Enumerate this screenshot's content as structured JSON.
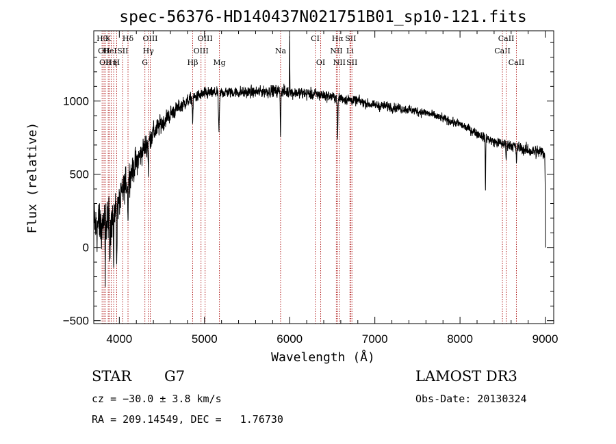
{
  "chart_data": {
    "type": "line",
    "title": "spec-56376-HD140437N021751B01_sp10-121.fits",
    "xlabel": "Wavelength (Å)",
    "ylabel": "Flux (relative)",
    "xlim": [
      3700,
      9100
    ],
    "ylim": [
      -520,
      1480
    ],
    "xticks": [
      4000,
      5000,
      6000,
      7000,
      8000,
      9000
    ],
    "yticks": [
      -500,
      0,
      500,
      1000
    ],
    "xtick_labels": [
      "4000",
      "5000",
      "6000",
      "7000",
      "8000",
      "9000"
    ],
    "ytick_labels": [
      "−500",
      "0",
      "500",
      "1000"
    ],
    "grid": false,
    "series": [
      {
        "name": "flux",
        "color": "#000000",
        "continuum": [
          [
            3700,
            150
          ],
          [
            3800,
            150
          ],
          [
            3900,
            200
          ],
          [
            4000,
            300
          ],
          [
            4100,
            470
          ],
          [
            4200,
            580
          ],
          [
            4300,
            690
          ],
          [
            4400,
            780
          ],
          [
            4500,
            850
          ],
          [
            4600,
            910
          ],
          [
            4700,
            960
          ],
          [
            4800,
            1000
          ],
          [
            4900,
            1030
          ],
          [
            5000,
            1050
          ],
          [
            5200,
            1060
          ],
          [
            5400,
            1060
          ],
          [
            5600,
            1060
          ],
          [
            5800,
            1070
          ],
          [
            6000,
            1060
          ],
          [
            6200,
            1050
          ],
          [
            6400,
            1040
          ],
          [
            6600,
            1020
          ],
          [
            6800,
            1000
          ],
          [
            7000,
            970
          ],
          [
            7200,
            960
          ],
          [
            7400,
            940
          ],
          [
            7600,
            920
          ],
          [
            7800,
            880
          ],
          [
            8000,
            840
          ],
          [
            8200,
            780
          ],
          [
            8400,
            720
          ],
          [
            8600,
            700
          ],
          [
            8800,
            660
          ],
          [
            8990,
            650
          ]
        ],
        "noise": [
          [
            3700,
            200
          ],
          [
            4000,
            130
          ],
          [
            4300,
            90
          ],
          [
            4700,
            50
          ],
          [
            5200,
            40
          ],
          [
            6000,
            45
          ],
          [
            7000,
            35
          ],
          [
            8000,
            30
          ],
          [
            8600,
            40
          ],
          [
            9000,
            50
          ]
        ],
        "features": [
          [
            3835,
            3,
            -380
          ],
          [
            3889,
            3,
            -350
          ],
          [
            3934,
            3,
            -400
          ],
          [
            3969,
            3,
            -350
          ],
          [
            4102,
            4,
            -220
          ],
          [
            4341,
            4,
            -200
          ],
          [
            4861,
            4,
            -150
          ],
          [
            5170,
            6,
            -250
          ],
          [
            5893,
            3,
            -300
          ],
          [
            6000,
            2,
            430
          ],
          [
            6563,
            4,
            -280
          ],
          [
            8298,
            3,
            -340
          ],
          [
            8542,
            4,
            -100
          ],
          [
            8662,
            4,
            -100
          ]
        ],
        "end_drop": [
          [
            8995,
            630
          ],
          [
            9000,
            400
          ],
          [
            9003,
            0
          ]
        ]
      }
    ],
    "line_markers": [
      {
        "wave": 3798,
        "label": "Hθ",
        "row": 0
      },
      {
        "wave": 3820,
        "label": "OII",
        "row": 1
      },
      {
        "wave": 3835,
        "label": "OII",
        "row": 2
      },
      {
        "wave": 3870,
        "label": "K",
        "row": 0
      },
      {
        "wave": 3889,
        "label": "HeI",
        "row": 1
      },
      {
        "wave": 3905,
        "label": "Hη",
        "row": 2
      },
      {
        "wave": 3934,
        "label": "",
        "row": 0
      },
      {
        "wave": 3969,
        "label": "H",
        "row": 2
      },
      {
        "wave": 4040,
        "label": "SII",
        "row": 1
      },
      {
        "wave": 4102,
        "label": "Hδ",
        "row": 0
      },
      {
        "wave": 4300,
        "label": "G",
        "row": 2
      },
      {
        "wave": 4341,
        "label": "Hγ",
        "row": 1
      },
      {
        "wave": 4363,
        "label": "OIII",
        "row": 0
      },
      {
        "wave": 4861,
        "label": "Hβ",
        "row": 2
      },
      {
        "wave": 4959,
        "label": "OIII",
        "row": 1
      },
      {
        "wave": 5007,
        "label": "OIII",
        "row": 0
      },
      {
        "wave": 5175,
        "label": "Mg",
        "row": 2
      },
      {
        "wave": 5893,
        "label": "Na",
        "row": 1
      },
      {
        "wave": 6300,
        "label": "CI",
        "row": 0
      },
      {
        "wave": 6364,
        "label": "OI",
        "row": 2
      },
      {
        "wave": 6548,
        "label": "NII",
        "row": 1
      },
      {
        "wave": 6563,
        "label": "Hα",
        "row": 0
      },
      {
        "wave": 6583,
        "label": "NII",
        "row": 2
      },
      {
        "wave": 6708,
        "label": "Li",
        "row": 1
      },
      {
        "wave": 6716,
        "label": "SII",
        "row": 0
      },
      {
        "wave": 6731,
        "label": "SII",
        "row": 2
      },
      {
        "wave": 8498,
        "label": "CaII",
        "row": 1
      },
      {
        "wave": 8542,
        "label": "CaII",
        "row": 0
      },
      {
        "wave": 8662,
        "label": "CaII",
        "row": 2
      }
    ],
    "marker_color": "#b22222"
  },
  "info": {
    "object_class": "STAR",
    "subclass": "G7",
    "survey": "LAMOST DR3",
    "velocity": "cz = −30.0 ± 3.8 km/s",
    "obs_date": "Obs-Date: 20130324",
    "coordinates": "RA = 209.14549, DEC =   1.76730"
  }
}
